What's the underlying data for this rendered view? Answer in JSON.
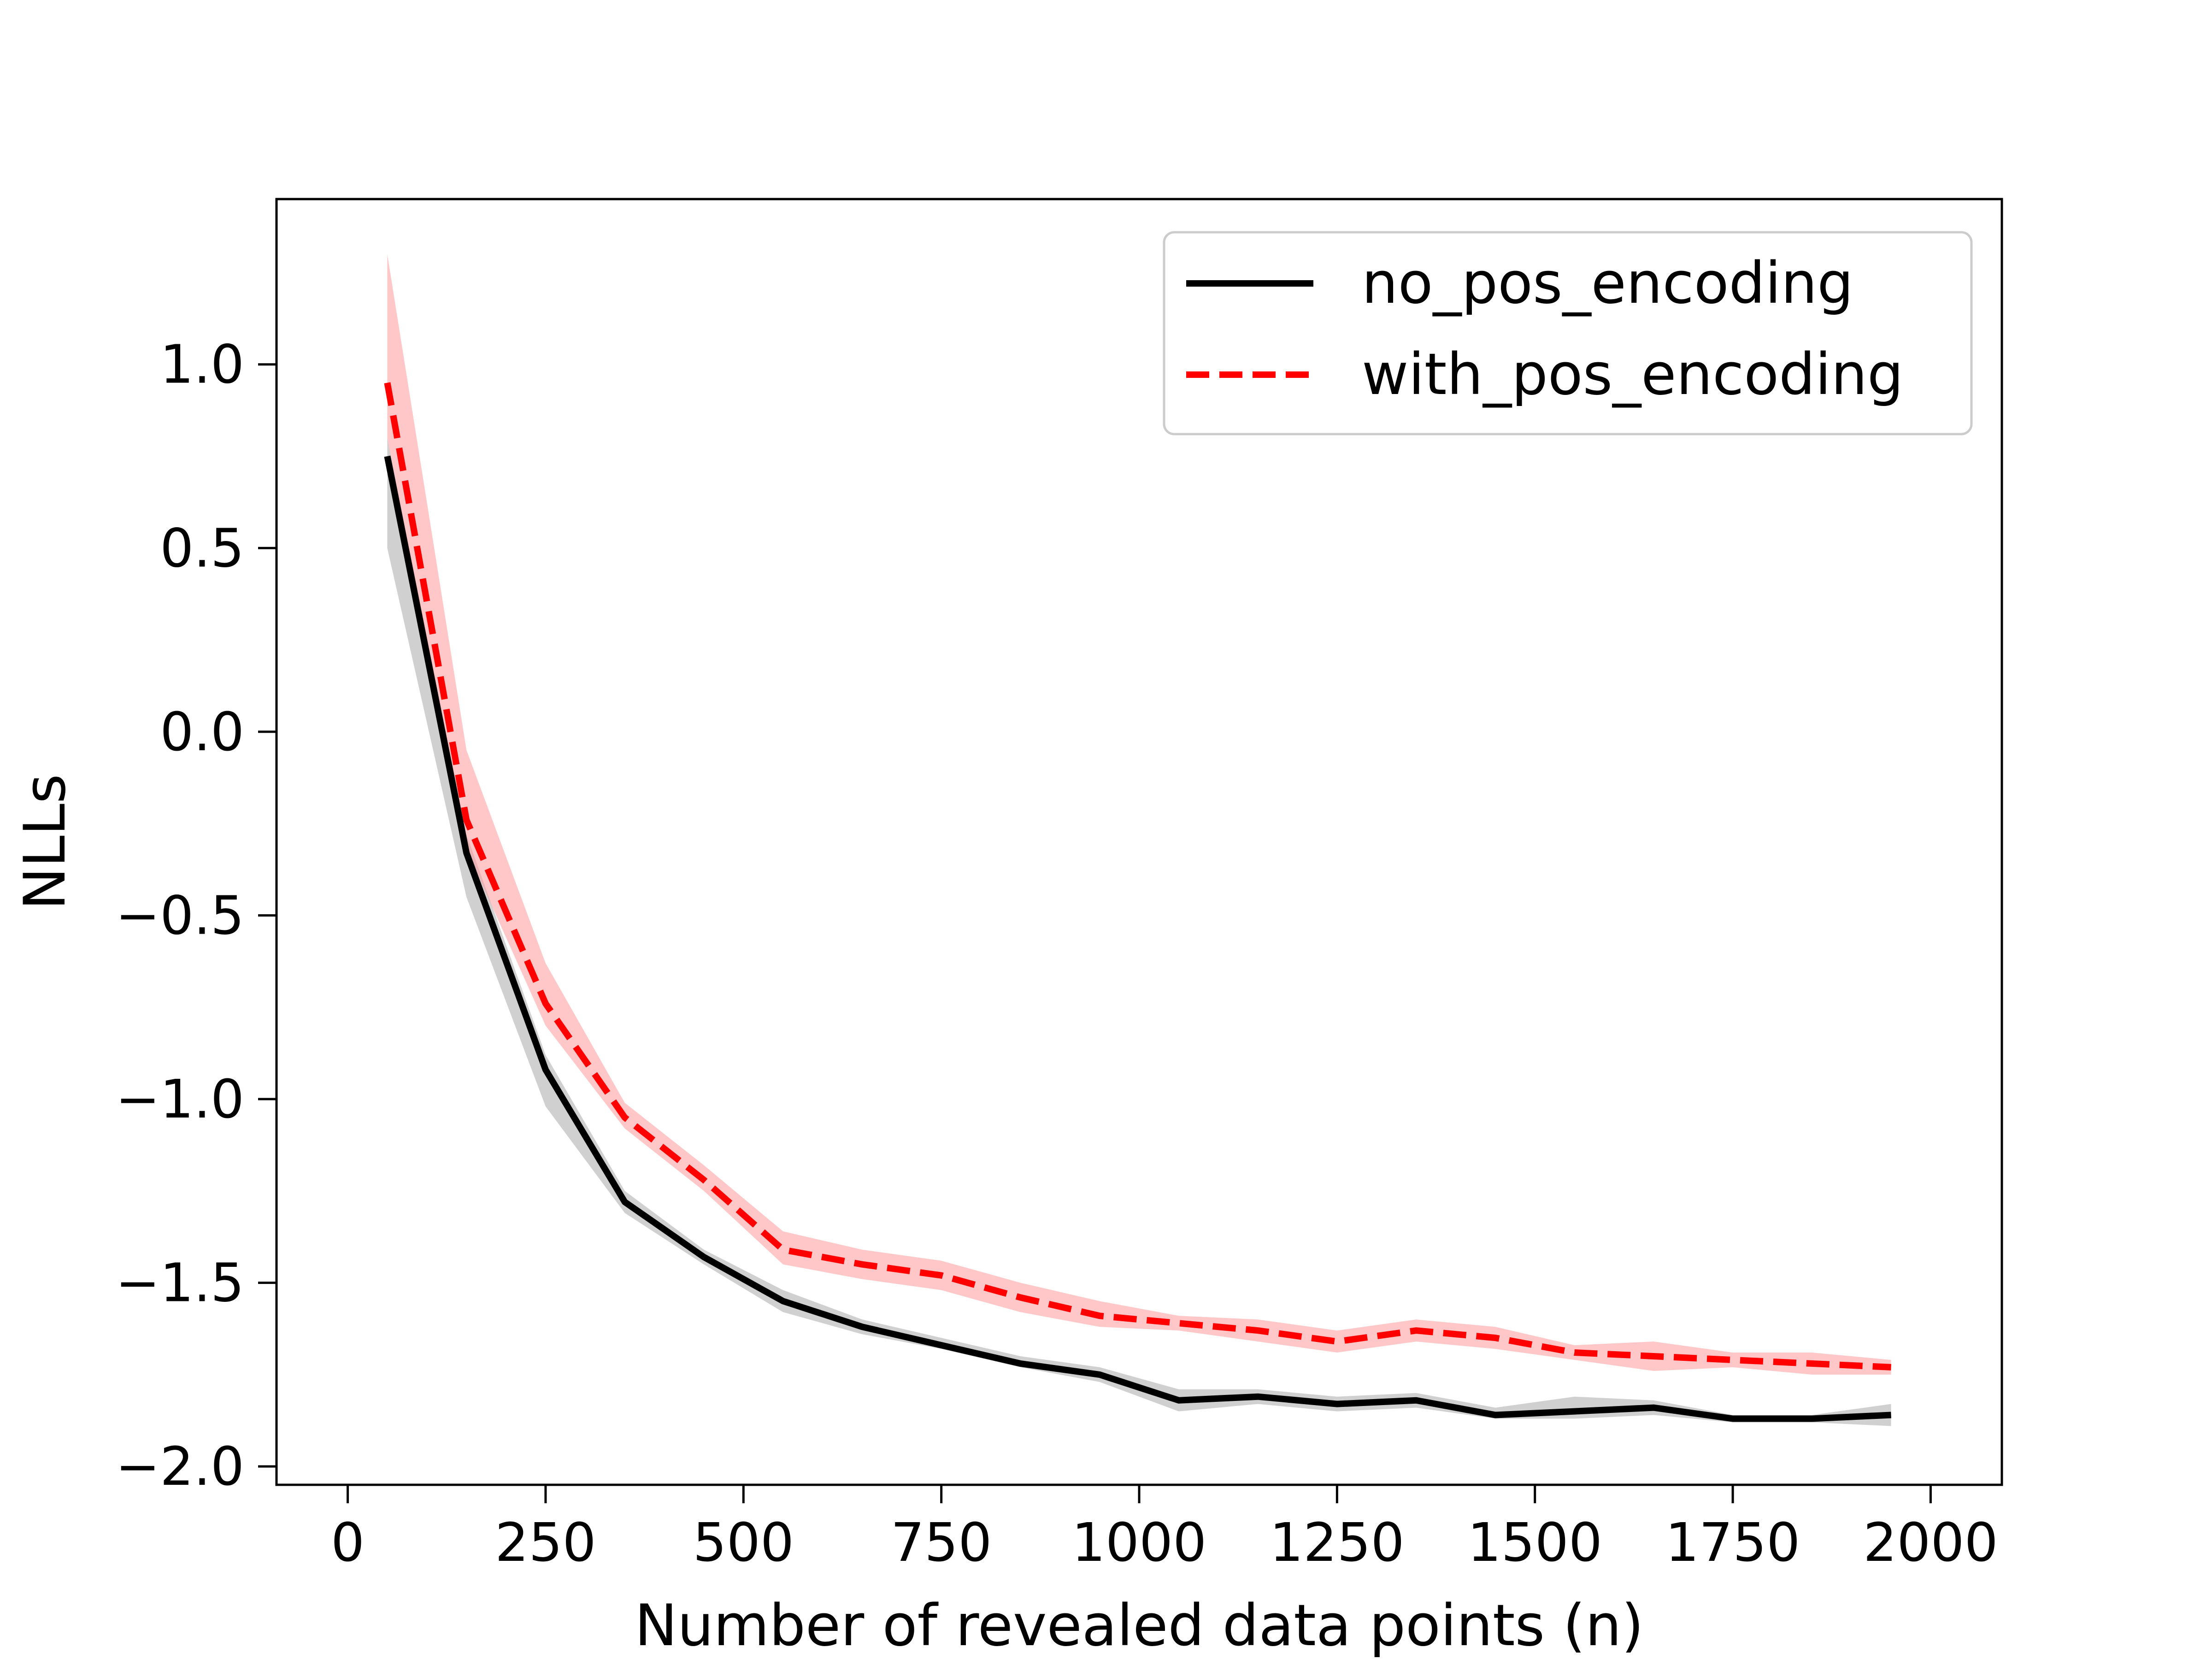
{
  "chart_data": {
    "type": "line",
    "title": "",
    "xlabel": "Number of revealed data points (n)",
    "ylabel": "NLLs",
    "xlim": [
      -90,
      2090
    ],
    "ylim": [
      -2.05,
      1.45
    ],
    "xticks": [
      0,
      250,
      500,
      750,
      1000,
      1250,
      1500,
      1750,
      2000
    ],
    "xtick_labels": [
      "0",
      "250",
      "500",
      "750",
      "1000",
      "1250",
      "1500",
      "1750",
      "2000"
    ],
    "yticks": [
      1.0,
      0.5,
      0.0,
      -0.5,
      -1.0,
      -1.5,
      -2.0
    ],
    "ytick_labels": [
      "1.0",
      "0.5",
      "0.0",
      "−0.5",
      "−1.0",
      "−1.5",
      "−2.0"
    ],
    "grid": false,
    "legend_position": "top-right",
    "x": [
      50,
      150,
      250,
      350,
      450,
      550,
      650,
      750,
      850,
      950,
      1050,
      1150,
      1250,
      1350,
      1450,
      1550,
      1650,
      1750,
      1850,
      1950
    ],
    "series": [
      {
        "name": "no_pos_encoding",
        "color": "#000000",
        "band_color": "#b0b0b0",
        "line_style": "solid",
        "values": [
          0.75,
          -0.33,
          -0.92,
          -1.28,
          -1.43,
          -1.55,
          -1.62,
          -1.67,
          -1.72,
          -1.75,
          -1.82,
          -1.81,
          -1.83,
          -1.82,
          -1.86,
          -1.85,
          -1.84,
          -1.87,
          -1.87,
          -1.86
        ],
        "lower": [
          0.5,
          -0.45,
          -1.02,
          -1.31,
          -1.45,
          -1.58,
          -1.64,
          -1.68,
          -1.73,
          -1.77,
          -1.85,
          -1.83,
          -1.85,
          -1.84,
          -1.87,
          -1.87,
          -1.86,
          -1.88,
          -1.88,
          -1.89
        ],
        "upper": [
          0.8,
          -0.28,
          -0.88,
          -1.25,
          -1.41,
          -1.52,
          -1.6,
          -1.65,
          -1.7,
          -1.73,
          -1.79,
          -1.79,
          -1.81,
          -1.8,
          -1.84,
          -1.81,
          -1.82,
          -1.86,
          -1.86,
          -1.83
        ]
      },
      {
        "name": "with_pos_encoding",
        "color": "#ff0000",
        "band_color": "#ff9999",
        "line_style": "dashed",
        "values": [
          0.95,
          -0.24,
          -0.74,
          -1.05,
          -1.22,
          -1.41,
          -1.45,
          -1.48,
          -1.54,
          -1.59,
          -1.61,
          -1.63,
          -1.66,
          -1.63,
          -1.65,
          -1.69,
          -1.7,
          -1.71,
          -1.72,
          -1.73
        ],
        "lower": [
          0.8,
          -0.32,
          -0.8,
          -1.08,
          -1.25,
          -1.45,
          -1.49,
          -1.52,
          -1.58,
          -1.62,
          -1.63,
          -1.66,
          -1.69,
          -1.66,
          -1.68,
          -1.71,
          -1.74,
          -1.73,
          -1.75,
          -1.75
        ],
        "upper": [
          1.3,
          -0.05,
          -0.63,
          -1.01,
          -1.18,
          -1.36,
          -1.41,
          -1.44,
          -1.5,
          -1.55,
          -1.59,
          -1.6,
          -1.63,
          -1.6,
          -1.62,
          -1.67,
          -1.66,
          -1.69,
          -1.69,
          -1.71
        ]
      }
    ]
  }
}
